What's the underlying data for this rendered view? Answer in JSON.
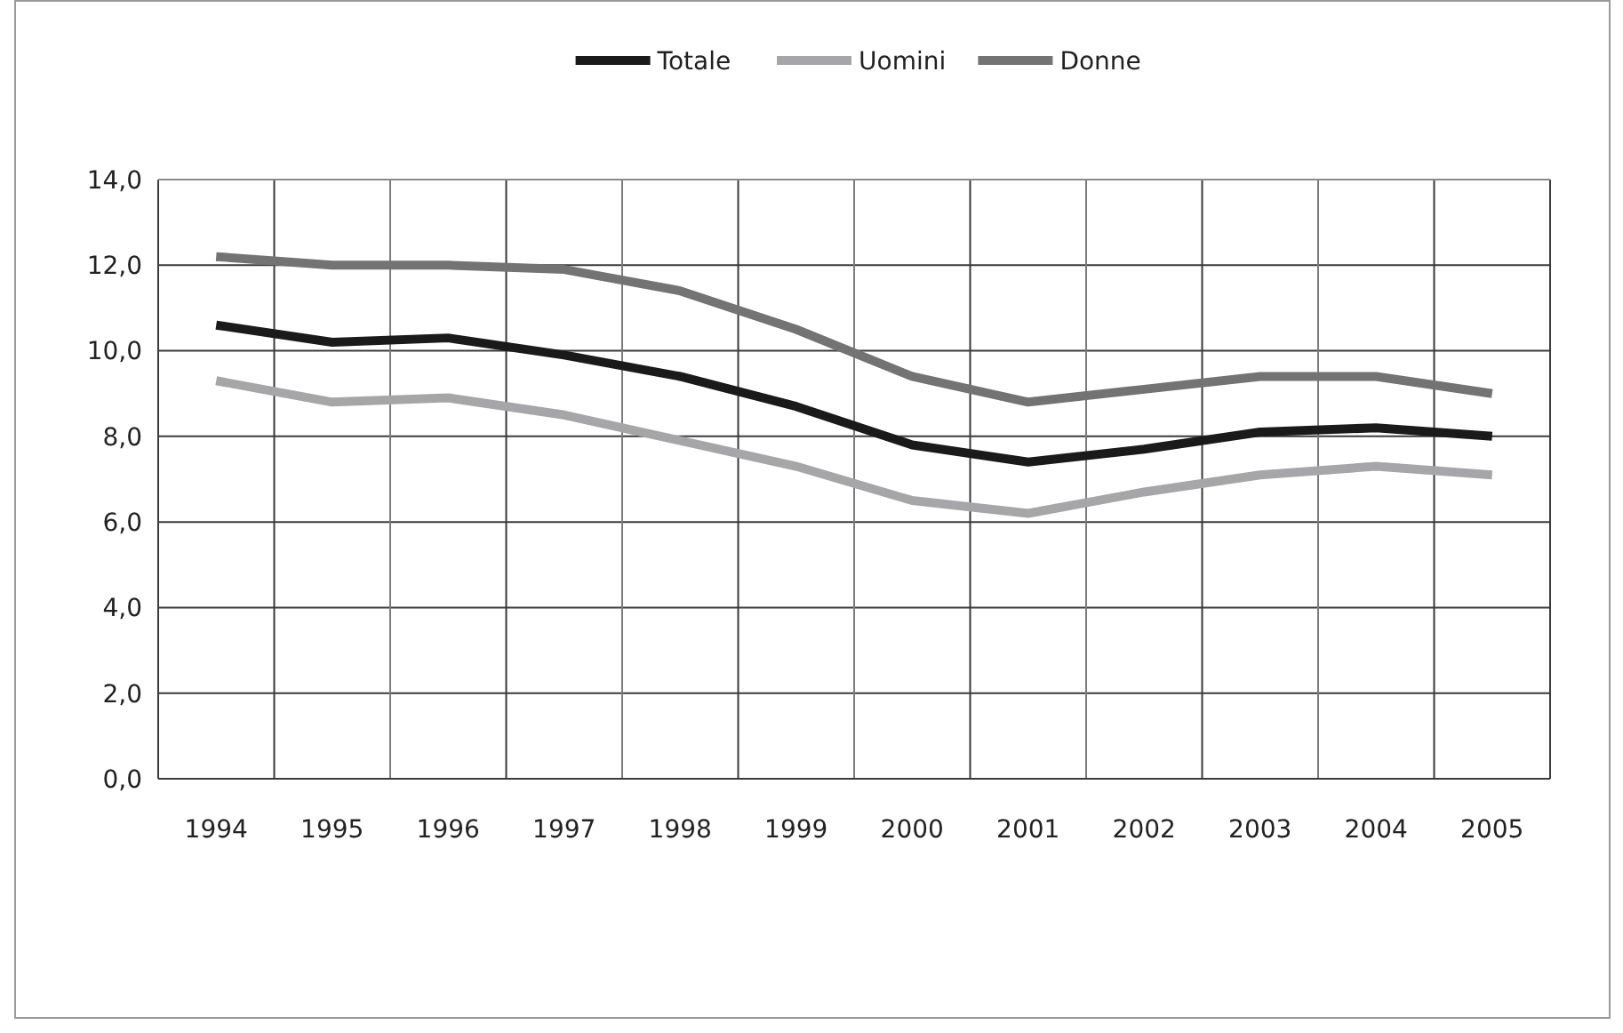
{
  "chart_data": {
    "type": "line",
    "categories": [
      "1994",
      "1995",
      "1996",
      "1997",
      "1998",
      "1999",
      "2000",
      "2001",
      "2002",
      "2003",
      "2004",
      "2005"
    ],
    "series": [
      {
        "name": "Totale",
        "color": "#1a1a1a",
        "values": [
          10.6,
          10.2,
          10.3,
          9.9,
          9.4,
          8.7,
          7.8,
          7.4,
          7.7,
          8.1,
          8.2,
          8.0
        ]
      },
      {
        "name": "Uomini",
        "color": "#a6a6a8",
        "values": [
          9.3,
          8.8,
          8.9,
          8.5,
          7.9,
          7.3,
          6.5,
          6.2,
          6.7,
          7.1,
          7.3,
          7.1
        ]
      },
      {
        "name": "Donne",
        "color": "#737373",
        "values": [
          12.2,
          12.0,
          12.0,
          11.9,
          11.4,
          10.5,
          9.4,
          8.8,
          9.1,
          9.4,
          9.4,
          9.0
        ]
      }
    ],
    "ylim": [
      0,
      14
    ],
    "yticks": [
      {
        "value": 0,
        "label": "0,0"
      },
      {
        "value": 2,
        "label": "2,0"
      },
      {
        "value": 4,
        "label": "4,0"
      },
      {
        "value": 6,
        "label": "6,0"
      },
      {
        "value": 8,
        "label": "8,0"
      },
      {
        "value": 10,
        "label": "10,0"
      },
      {
        "value": 12,
        "label": "12,0"
      },
      {
        "value": 14,
        "label": "14,0"
      }
    ],
    "grid": true,
    "legend": "top",
    "line_style": "solid",
    "marker": "none"
  }
}
